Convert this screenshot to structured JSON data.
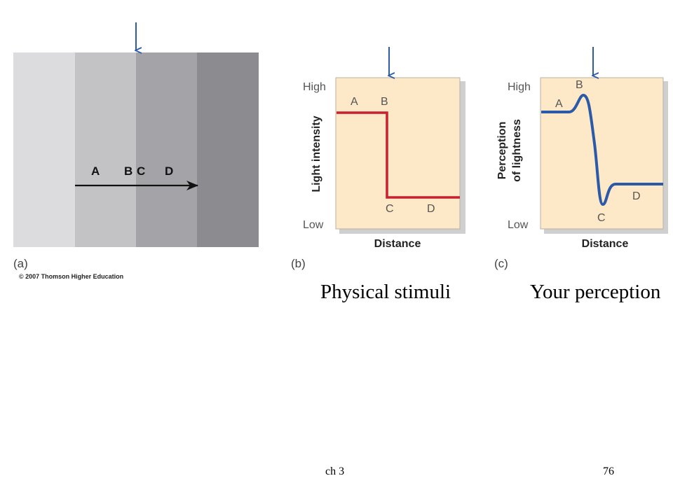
{
  "panel_a": {
    "label": "(a)",
    "copyright": "© 2007 Thomson Higher Education",
    "points": [
      "A",
      "B",
      "C",
      "D"
    ],
    "band_colors": [
      "#dcdcde",
      "#c3c3c6",
      "#a4a4a8",
      "#8c8c90"
    ],
    "arrow_color": "#2b5ca8"
  },
  "panel_b": {
    "label": "(b)",
    "y_high": "High",
    "y_low": "Low",
    "ylabel": "Light intensity",
    "xlabel": "Distance",
    "points": [
      "A",
      "B",
      "C",
      "D"
    ],
    "curve_color": "#c8202e",
    "bg_color": "#fde8c8"
  },
  "panel_c": {
    "label": "(c)",
    "y_high": "High",
    "y_low": "Low",
    "ylabel_line1": "Perception",
    "ylabel_line2": "of lightness",
    "xlabel": "Distance",
    "points": [
      "A",
      "B",
      "C",
      "D"
    ],
    "curve_color": "#2a5aa8",
    "bg_color": "#fde8c8"
  },
  "captions": {
    "physical": "Physical stimuli",
    "perception": "Your perception"
  },
  "footer": {
    "chapter": "ch 3",
    "page": "76"
  }
}
